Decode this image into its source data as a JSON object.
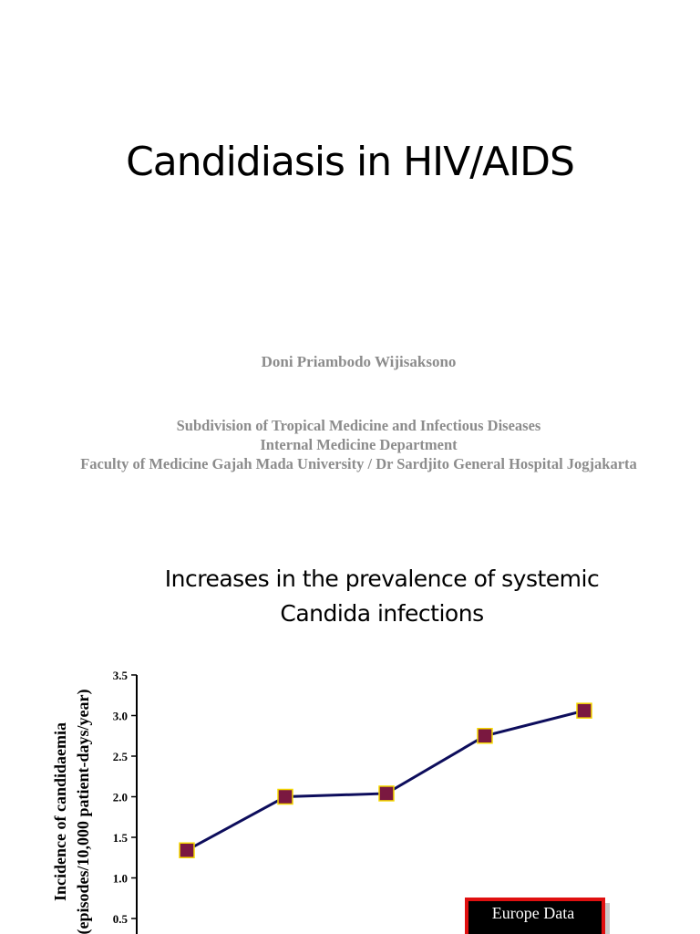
{
  "slide1": {
    "title": "Candidiasis in HIV/AIDS",
    "author": "Doni Priambodo Wijisaksono",
    "affiliation": [
      "Subdivision of Tropical Medicine and Infectious Diseases",
      "Internal Medicine Department",
      "Faculty of Medicine Gajah Mada University / Dr Sardjito General Hospital Jogjakarta"
    ]
  },
  "slide2": {
    "title_lines": [
      "Increases in the prevalence of systemic",
      "Candida infections"
    ]
  },
  "chart_data": {
    "type": "line",
    "ylabel_lines": [
      "Incidence of candidaemia",
      "(episodes/10,000 patient-days/year)"
    ],
    "ylim": [
      0,
      3.5
    ],
    "yticks": [
      "0.5",
      "1.0",
      "1.5",
      "2.0",
      "2.5",
      "3.0",
      "3.5"
    ],
    "series": [
      {
        "values": [
          1.34,
          2.0,
          2.04,
          2.75,
          3.06
        ]
      }
    ],
    "line_color": "#0d0d5c",
    "marker_color": "#7a1840",
    "marker_edge": "#f5d800",
    "annotation": "Europe Data",
    "annotation_border": "#e01010"
  }
}
